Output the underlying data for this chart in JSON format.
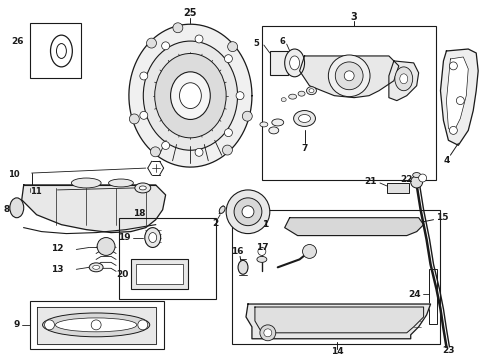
{
  "bg_color": "#ffffff",
  "line_color": "#1a1a1a",
  "figsize": [
    4.9,
    3.6
  ],
  "dpi": 100
}
